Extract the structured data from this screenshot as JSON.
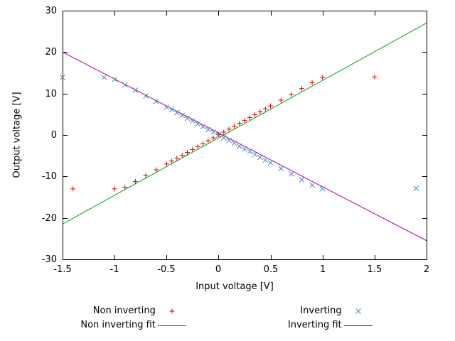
{
  "chart_data": {
    "type": "scatter",
    "title": "",
    "xlabel": "Input voltage [V]",
    "ylabel": "Output voltage [V]",
    "xlim": [
      -1.5,
      2
    ],
    "ylim": [
      -30,
      30
    ],
    "xticks": [
      -1.5,
      -1,
      -0.5,
      0,
      0.5,
      1,
      1.5,
      2
    ],
    "yticks": [
      -30,
      -20,
      -10,
      0,
      10,
      20,
      30
    ],
    "grid": false,
    "legend_position": "below-plot, two columns",
    "axis_color": "#000000",
    "series": [
      {
        "name": "Non inverting",
        "type": "points",
        "marker": "plus",
        "color": "#dd0000",
        "points": [
          [
            -1.4,
            -13
          ],
          [
            -1,
            -13
          ],
          [
            -0.9,
            -12.6
          ],
          [
            -0.8,
            -11.2
          ],
          [
            -0.7,
            -9.8
          ],
          [
            -0.6,
            -8.4
          ],
          [
            -0.5,
            -7
          ],
          [
            -0.45,
            -6.3
          ],
          [
            -0.4,
            -5.6
          ],
          [
            -0.35,
            -4.9
          ],
          [
            -0.3,
            -4.2
          ],
          [
            -0.25,
            -3.5
          ],
          [
            -0.2,
            -2.8
          ],
          [
            -0.15,
            -2.1
          ],
          [
            -0.1,
            -1.4
          ],
          [
            -0.05,
            -0.7
          ],
          [
            0,
            0.1
          ],
          [
            0.05,
            0.7
          ],
          [
            0.1,
            1.4
          ],
          [
            0.15,
            2.1
          ],
          [
            0.2,
            2.8
          ],
          [
            0.25,
            3.5
          ],
          [
            0.3,
            4.2
          ],
          [
            0.35,
            4.9
          ],
          [
            0.4,
            5.6
          ],
          [
            0.45,
            6.3
          ],
          [
            0.5,
            7
          ],
          [
            0.6,
            8.4
          ],
          [
            0.7,
            9.8
          ],
          [
            0.8,
            11.2
          ],
          [
            0.9,
            12.6
          ],
          [
            1,
            13.9
          ],
          [
            1.5,
            14
          ]
        ]
      },
      {
        "name": "Inverting",
        "type": "points",
        "marker": "cross",
        "color": "#4488bb",
        "points": [
          [
            -1.5,
            13.9
          ],
          [
            -1.1,
            13.9
          ],
          [
            -1,
            13.4
          ],
          [
            -0.9,
            12.1
          ],
          [
            -0.8,
            10.8
          ],
          [
            -0.7,
            9.4
          ],
          [
            -0.6,
            8.1
          ],
          [
            -0.5,
            6.7
          ],
          [
            -0.45,
            6.1
          ],
          [
            -0.4,
            5.4
          ],
          [
            -0.35,
            4.7
          ],
          [
            -0.3,
            4
          ],
          [
            -0.25,
            3.4
          ],
          [
            -0.2,
            2.7
          ],
          [
            -0.15,
            2
          ],
          [
            -0.1,
            1.3
          ],
          [
            -0.05,
            0.7
          ],
          [
            0,
            0
          ],
          [
            0.05,
            -0.7
          ],
          [
            0.1,
            -1.3
          ],
          [
            0.15,
            -2
          ],
          [
            0.2,
            -2.7
          ],
          [
            0.25,
            -3.4
          ],
          [
            0.3,
            -4
          ],
          [
            0.35,
            -4.7
          ],
          [
            0.4,
            -5.4
          ],
          [
            0.45,
            -6.1
          ],
          [
            0.5,
            -6.7
          ],
          [
            0.6,
            -8.1
          ],
          [
            0.7,
            -9.4
          ],
          [
            0.8,
            -10.8
          ],
          [
            0.9,
            -12.1
          ],
          [
            1,
            -13
          ],
          [
            1.9,
            -12.9
          ]
        ]
      },
      {
        "name": "Non inverting fit",
        "type": "line",
        "color": "#00a020",
        "slope": 13.86,
        "intercept": -0.7,
        "x_range": [
          -1.5,
          2
        ]
      },
      {
        "name": "Inverting fit",
        "type": "line",
        "color": "#aa00aa",
        "slope": -13.0,
        "intercept": 0.5,
        "x_range": [
          -1.5,
          2
        ]
      }
    ]
  }
}
